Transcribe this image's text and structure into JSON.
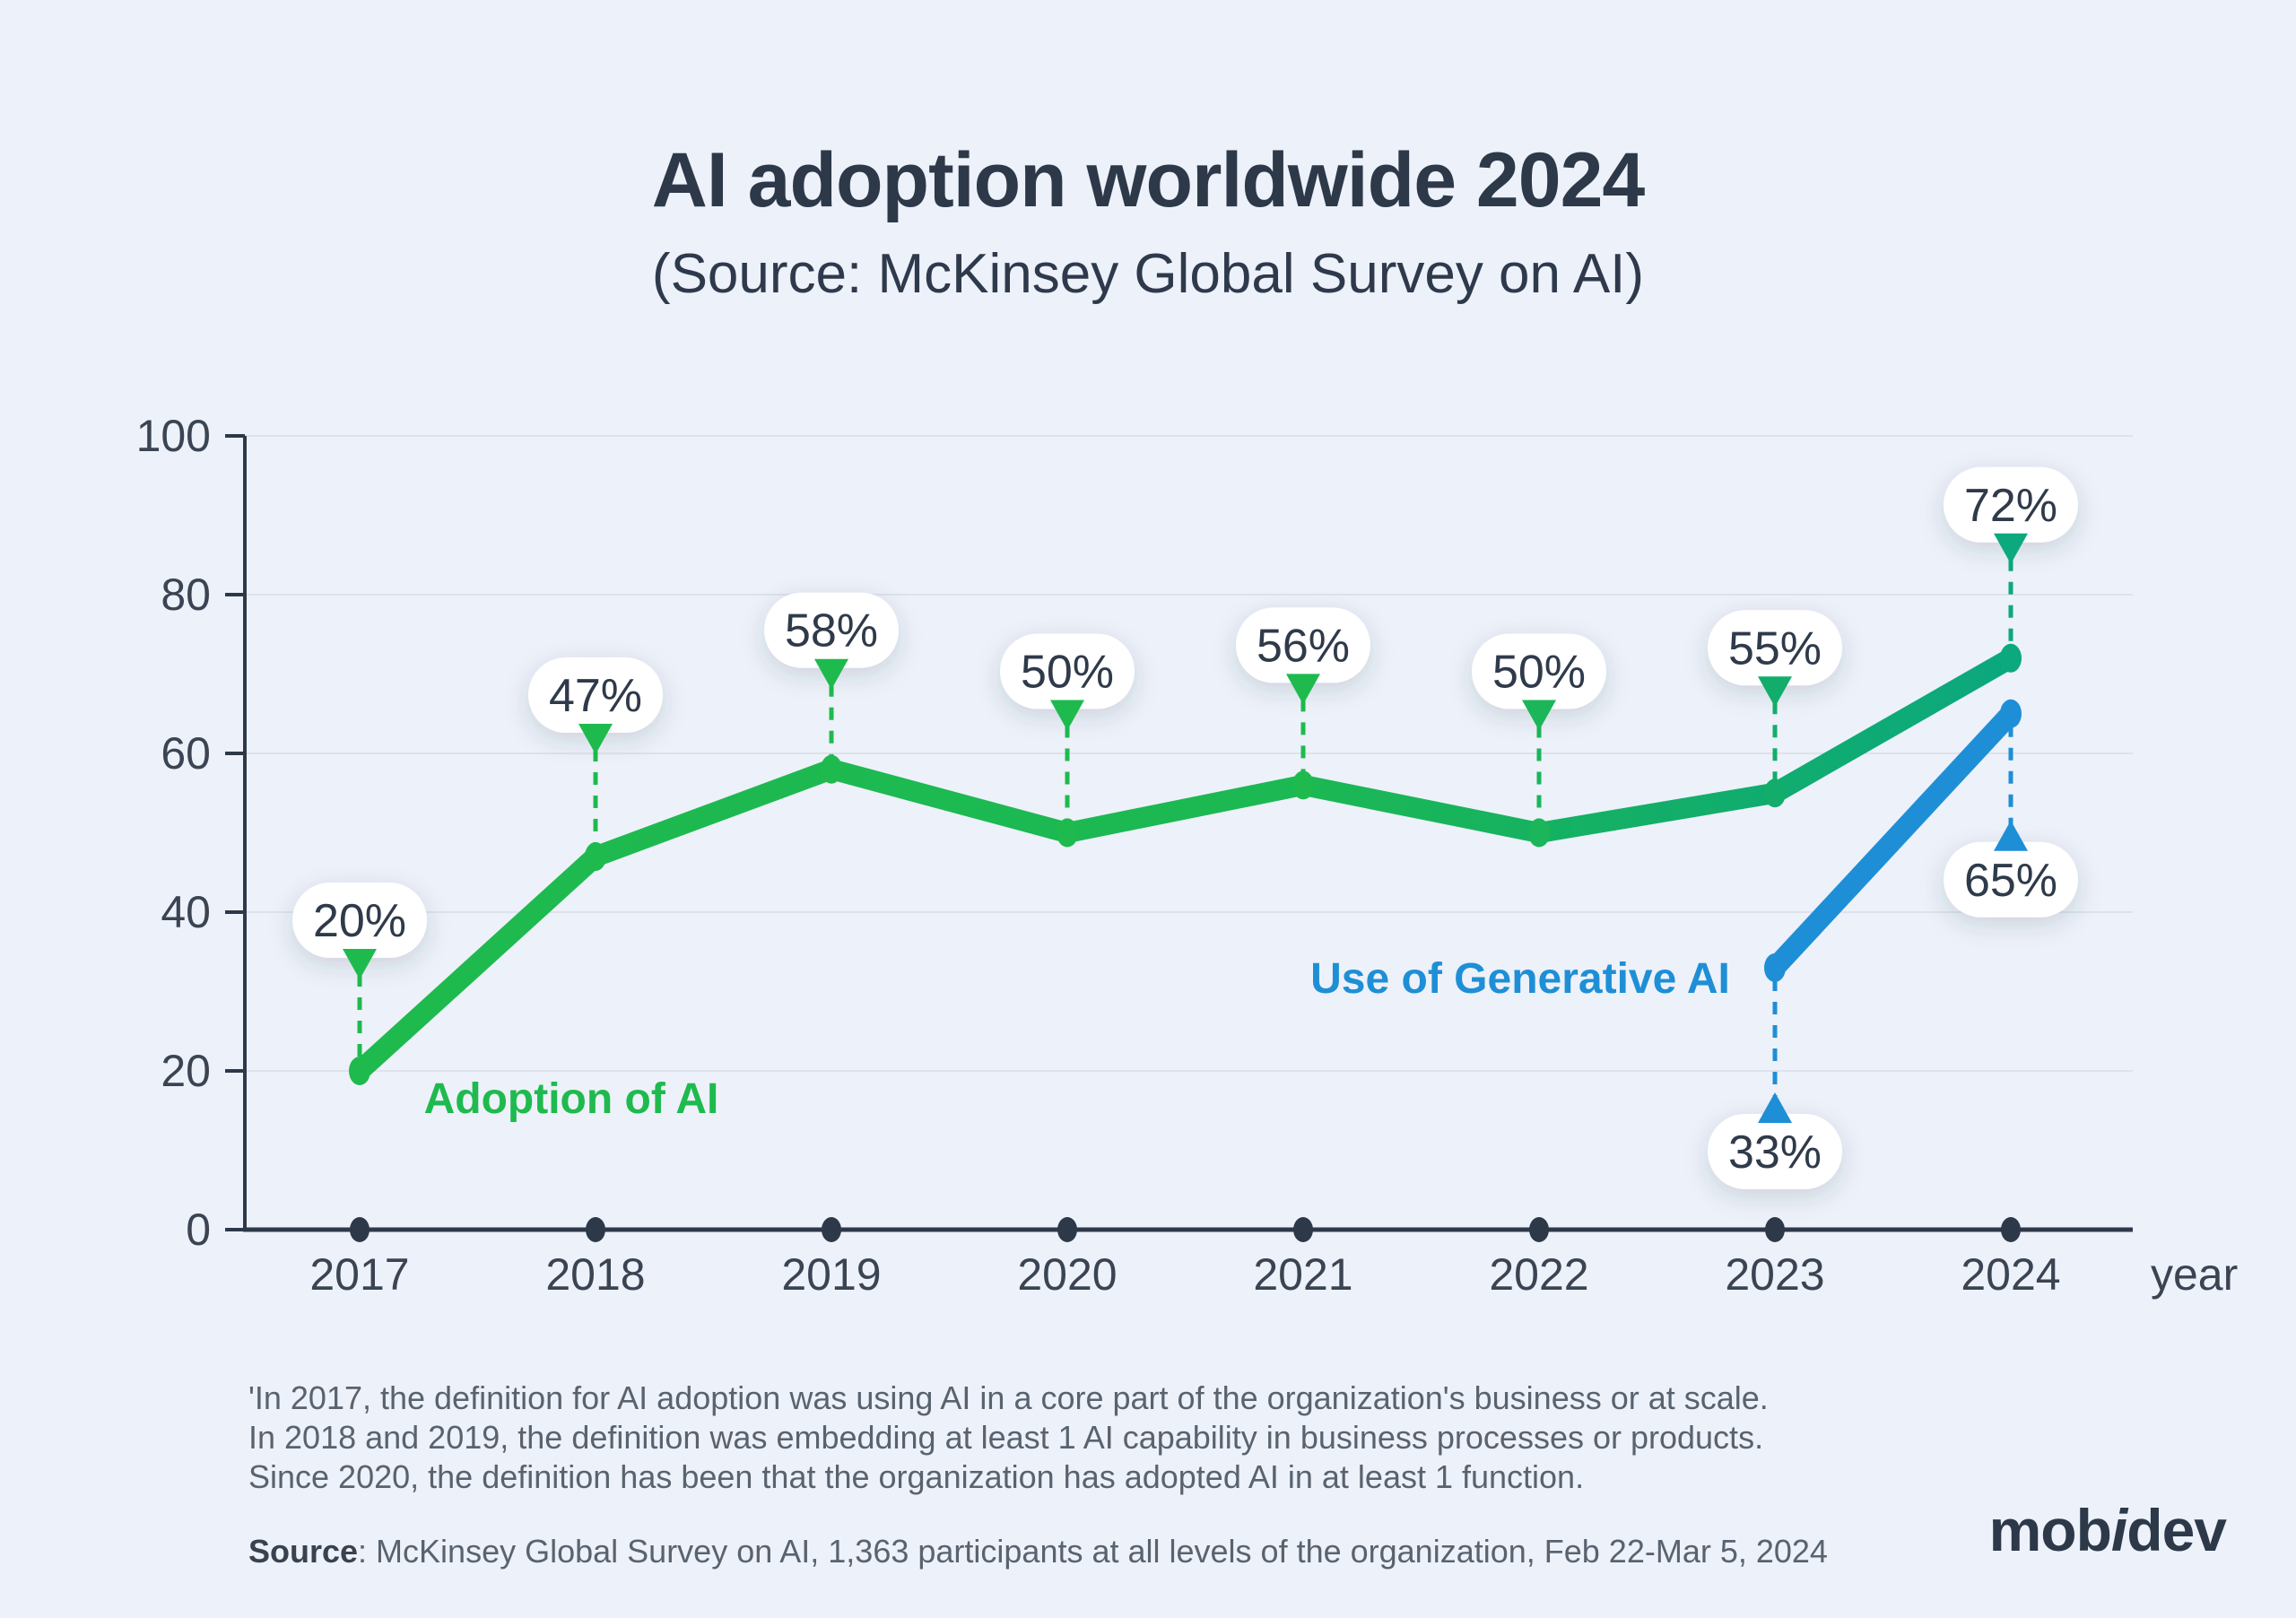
{
  "header": {
    "title": "AI adoption worldwide 2024",
    "subtitle": "(Source: McKinsey Global Survey on AI)"
  },
  "chart_data": {
    "type": "line",
    "title": "AI adoption worldwide 2024",
    "subtitle": "(Source: McKinsey Global Survey on AI)",
    "x_categories": [
      "2017",
      "2018",
      "2019",
      "2020",
      "2021",
      "2022",
      "2023",
      "2024"
    ],
    "xlabel": "year",
    "ylim": [
      0,
      100
    ],
    "yticks": [
      "0",
      "20",
      "40",
      "60",
      "80",
      "100"
    ],
    "grid": "horizontal gridlines at each y tick, light gray",
    "legend": "inline series labels next to lines",
    "colors": {
      "background": "#edf1f9",
      "axis": "#2d3949",
      "gridline": "#dde2ec",
      "green": "#1eba4e",
      "teal": "#0ca87e",
      "blue": "#1e8fd6",
      "pill_background": "#ffffff",
      "pill_text": "#2f3a4a"
    },
    "series": [
      {
        "name": "Adoption of AI",
        "x": [
          "2017",
          "2018",
          "2019",
          "2020",
          "2021",
          "2022",
          "2023",
          "2024"
        ],
        "values": [
          20,
          47,
          58,
          50,
          56,
          50,
          55,
          72
        ],
        "data_labels": [
          "20%",
          "47%",
          "58%",
          "50%",
          "56%",
          "50%",
          "55%",
          "72%"
        ],
        "labels_position": "above",
        "color": "#1eba4e",
        "color_end": "#0ca87e",
        "gradient_stops": [
          {
            "offset": 0,
            "color": "#1eba4e"
          },
          {
            "offset": 0.57,
            "color": "#1cb853"
          },
          {
            "offset": 0.8,
            "color": "#12ae6a"
          },
          {
            "offset": 1,
            "color": "#0ca87e"
          }
        ],
        "point_colors": [
          "#1eba4e",
          "#1eba4e",
          "#1eba4e",
          "#1eba4e",
          "#1eba4e",
          "#1bb65a",
          "#12ad6b",
          "#0ca87e"
        ]
      },
      {
        "name": "Use of Generative AI",
        "x": [
          "2023",
          "2024"
        ],
        "values": [
          33,
          65
        ],
        "data_labels": [
          "33%",
          "65%"
        ],
        "labels_position": "below",
        "color": "#1e8fd6"
      }
    ]
  },
  "footnotes": {
    "lines": [
      "'In 2017, the definition for AI adoption was using AI in a core part of the organization's business or at scale.",
      "In 2018 and 2019, the definition was embedding at least 1 AI capability in business processes or products.",
      "Since 2020, the definition has been that the organization has adopted AI in at least 1 function."
    ]
  },
  "source": {
    "label": "Source",
    "rest": ": McKinsey Global Survey on AI, 1,363 participants at all levels of the organization, Feb 22-Mar 5, 2024"
  },
  "logo": {
    "part1": "mob",
    "part2": "i",
    "part3": "dev"
  }
}
